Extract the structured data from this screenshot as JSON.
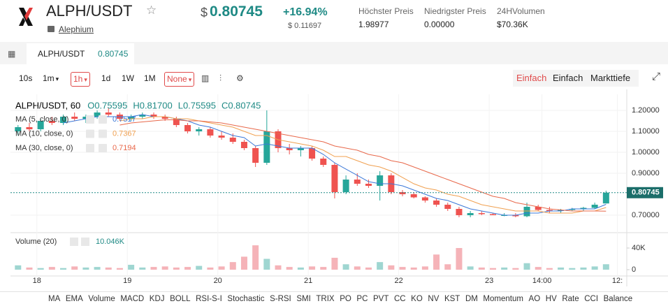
{
  "header": {
    "symbol": "ALPH/USDT",
    "name": "Alephium",
    "price_currency": "$",
    "price": "0.80745",
    "change": "+16.94%",
    "change_usd": "$ 0.11697",
    "stats": [
      {
        "label": "Höchster Preis",
        "value": "1.98977"
      },
      {
        "label": "Niedrigster Preis",
        "value": "0.00000"
      },
      {
        "label": "24HVolumen",
        "value": "$70.36K"
      }
    ]
  },
  "tab": {
    "symbol": "ALPH/USDT",
    "price": "0.80745"
  },
  "toolbar": {
    "intervals": [
      "10s",
      "1m",
      "1h",
      "1d",
      "1W",
      "1M"
    ],
    "indicator": "None",
    "views": [
      "Einfach",
      "Einfach",
      "Markttiefe"
    ]
  },
  "chart_data": {
    "type": "candlestick",
    "symbol_label": "ALPH/USDT, 60",
    "ohlc_legend": [
      {
        "key": "O",
        "value": "0.75595"
      },
      {
        "key": "H",
        "value": "0.81700"
      },
      {
        "key": "L",
        "value": "0.75595"
      },
      {
        "key": "C",
        "value": "0.80745"
      }
    ],
    "up_color": "#26a69a",
    "down_color": "#ef5350",
    "volume_up_color": "#9fd6d1",
    "volume_down_color": "#f5b3b8",
    "grid": true,
    "x": [
      1,
      4,
      7,
      10,
      13,
      16,
      19,
      22,
      25,
      28,
      31,
      34,
      37,
      40,
      43,
      46,
      49,
      52,
      55,
      58,
      61,
      64,
      67,
      70,
      73,
      76,
      79,
      82,
      85,
      88,
      91,
      94,
      97,
      100,
      103,
      106,
      109,
      112,
      115,
      118,
      121,
      124,
      127,
      130,
      133,
      136,
      139,
      142,
      145,
      148,
      151,
      154,
      157
    ],
    "open": [
      1.1,
      1.12,
      1.11,
      1.15,
      1.14,
      1.17,
      1.16,
      1.17,
      1.19,
      1.18,
      1.16,
      1.17,
      1.18,
      1.17,
      1.16,
      1.13,
      1.1,
      1.11,
      1.08,
      1.07,
      1.05,
      1.02,
      0.95,
      1.1,
      1.02,
      1.01,
      1.02,
      0.97,
      0.94,
      0.81,
      0.87,
      0.85,
      0.84,
      0.89,
      0.81,
      0.8,
      0.785,
      0.77,
      0.75,
      0.73,
      0.7,
      0.71,
      0.705,
      0.7,
      0.7,
      0.695,
      0.74,
      0.725,
      0.72,
      0.725,
      0.73,
      0.735,
      0.75595
    ],
    "high": [
      1.13,
      1.14,
      1.16,
      1.17,
      1.18,
      1.19,
      1.18,
      1.2,
      1.21,
      1.19,
      1.18,
      1.19,
      1.19,
      1.18,
      1.17,
      1.14,
      1.12,
      1.12,
      1.1,
      1.09,
      1.06,
      1.03,
      1.2,
      1.11,
      1.04,
      1.03,
      1.03,
      0.98,
      0.95,
      0.89,
      0.9,
      0.87,
      0.91,
      0.9,
      0.82,
      0.81,
      0.79,
      0.78,
      0.76,
      0.74,
      0.72,
      0.72,
      0.71,
      0.71,
      0.71,
      0.76,
      0.75,
      0.74,
      0.73,
      0.735,
      0.74,
      0.76,
      0.817
    ],
    "low": [
      1.08,
      1.1,
      1.1,
      1.13,
      1.13,
      1.15,
      1.14,
      1.16,
      1.17,
      1.15,
      1.15,
      1.16,
      1.16,
      1.15,
      1.12,
      1.09,
      1.08,
      1.07,
      1.06,
      1.04,
      1.01,
      0.93,
      0.94,
      1.0,
      0.99,
      0.98,
      0.96,
      0.93,
      0.78,
      0.8,
      0.84,
      0.83,
      0.77,
      0.8,
      0.79,
      0.78,
      0.76,
      0.74,
      0.72,
      0.69,
      0.69,
      0.7,
      0.7,
      0.695,
      0.69,
      0.69,
      0.72,
      0.71,
      0.71,
      0.72,
      0.72,
      0.73,
      0.75595
    ],
    "close": [
      1.12,
      1.11,
      1.15,
      1.14,
      1.17,
      1.16,
      1.17,
      1.19,
      1.18,
      1.16,
      1.17,
      1.18,
      1.17,
      1.16,
      1.13,
      1.1,
      1.11,
      1.08,
      1.07,
      1.05,
      1.02,
      0.95,
      1.1,
      1.02,
      1.01,
      1.02,
      0.97,
      0.94,
      0.81,
      0.87,
      0.85,
      0.84,
      0.89,
      0.81,
      0.8,
      0.785,
      0.77,
      0.75,
      0.73,
      0.7,
      0.71,
      0.705,
      0.7,
      0.7,
      0.695,
      0.74,
      0.725,
      0.72,
      0.725,
      0.73,
      0.735,
      0.75,
      0.80745
    ],
    "series": [
      {
        "name": "MA (5, close, 0)",
        "color": "#3b78d8",
        "legend_value": 0.7517,
        "values": [
          null,
          null,
          null,
          null,
          1.14,
          1.15,
          1.16,
          1.17,
          1.17,
          1.17,
          1.17,
          1.18,
          1.17,
          1.17,
          1.16,
          1.15,
          1.13,
          1.12,
          1.1,
          1.08,
          1.07,
          1.03,
          1.04,
          1.03,
          1.02,
          1.02,
          1.02,
          0.99,
          0.95,
          0.92,
          0.89,
          0.86,
          0.85,
          0.85,
          0.84,
          0.82,
          0.8,
          0.78,
          0.77,
          0.75,
          0.73,
          0.72,
          0.71,
          0.7,
          0.7,
          0.71,
          0.71,
          0.72,
          0.72,
          0.73,
          0.73,
          0.73,
          0.7517
        ]
      },
      {
        "name": "MA (10, close, 0)",
        "color": "#f0a050",
        "legend_value": 0.7367,
        "values": [
          null,
          null,
          null,
          null,
          null,
          null,
          null,
          null,
          null,
          1.15,
          1.16,
          1.16,
          1.17,
          1.17,
          1.16,
          1.16,
          1.15,
          1.14,
          1.13,
          1.12,
          1.1,
          1.08,
          1.08,
          1.06,
          1.05,
          1.04,
          1.03,
          1.01,
          0.98,
          0.98,
          0.96,
          0.94,
          0.93,
          0.91,
          0.88,
          0.85,
          0.83,
          0.82,
          0.8,
          0.79,
          0.77,
          0.75,
          0.74,
          0.73,
          0.72,
          0.72,
          0.72,
          0.71,
          0.71,
          0.71,
          0.72,
          0.72,
          0.7367
        ]
      },
      {
        "name": "MA (30, close, 0)",
        "color": "#e8684a",
        "legend_value": 0.7194,
        "values": [
          null,
          null,
          null,
          null,
          null,
          null,
          null,
          null,
          null,
          1.13,
          1.14,
          1.145,
          1.15,
          1.155,
          1.155,
          1.15,
          1.15,
          1.145,
          1.14,
          1.13,
          1.12,
          1.11,
          1.1,
          1.09,
          1.08,
          1.07,
          1.06,
          1.05,
          1.03,
          1.02,
          1.01,
          0.99,
          0.98,
          0.96,
          0.95,
          0.93,
          0.91,
          0.89,
          0.87,
          0.85,
          0.83,
          0.81,
          0.79,
          0.78,
          0.76,
          0.75,
          0.74,
          0.73,
          0.725,
          0.72,
          0.72,
          0.72,
          0.7194
        ]
      }
    ],
    "volume": {
      "name": "Volume (20)",
      "legend_label": "10.046K",
      "values": [
        8000,
        4000,
        3000,
        5000,
        3000,
        6000,
        4000,
        5000,
        4000,
        3000,
        9000,
        4000,
        5000,
        6000,
        4000,
        5000,
        7000,
        4000,
        6000,
        14000,
        24000,
        45000,
        20000,
        8000,
        5000,
        4000,
        6000,
        5000,
        22000,
        10000,
        6000,
        4000,
        14000,
        8000,
        5000,
        4000,
        6000,
        28000,
        10000,
        40000,
        6000,
        4000,
        3000,
        4000,
        3000,
        12000,
        5000,
        3000,
        4000,
        3000,
        4000,
        6000,
        10046
      ],
      "ylim": [
        -11600,
        65800
      ],
      "yticks": [
        {
          "value": 40000,
          "label": "40K"
        },
        0
      ]
    },
    "xlim": [
      -1,
      162.5
    ],
    "xticks": [
      {
        "value": 6,
        "label": "18"
      },
      {
        "value": 30,
        "label": "19"
      },
      {
        "value": 54,
        "label": "20"
      },
      {
        "value": 78,
        "label": "21"
      },
      {
        "value": 102,
        "label": "22"
      },
      {
        "value": 126,
        "label": "23"
      },
      {
        "value": 140,
        "label": "14:00"
      },
      {
        "value": 160,
        "label": "12:"
      }
    ],
    "ylim": [
      0.6267,
      1.2767
    ],
    "yticks": [
      {
        "value": 1.2,
        "label": "1.20000"
      },
      {
        "value": 1.1,
        "label": "1.10000"
      },
      {
        "value": 1.0,
        "label": "1.00000"
      },
      {
        "value": 0.9,
        "label": "0.90000"
      },
      {
        "value": 0.7,
        "label": "0.70000"
      }
    ]
  },
  "indicators": [
    "MA",
    "EMA",
    "Volume",
    "MACD",
    "KDJ",
    "BOLL",
    "RSI-S-I",
    "Stochastic",
    "S-RSI",
    "SMI",
    "TRIX",
    "PO",
    "PC",
    "PVT",
    "CC",
    "KO",
    "NV",
    "KST",
    "DM",
    "Momentum",
    "AO",
    "HV",
    "Rate",
    "CCI",
    "Balance"
  ]
}
